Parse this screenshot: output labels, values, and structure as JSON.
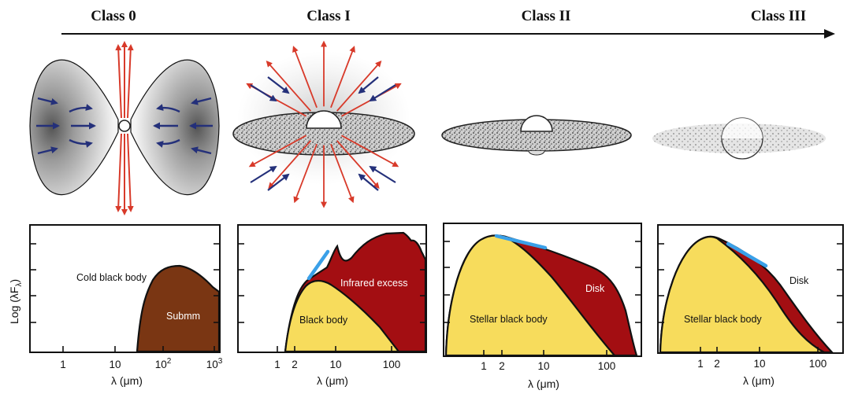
{
  "classes": [
    "Class 0",
    "Class I",
    "Class II",
    "Class III"
  ],
  "y_axis_label": "Log (λF",
  "y_axis_sub": "λ",
  "y_axis_close": ")",
  "panel0": {
    "xticks": [
      "1",
      "10",
      "10",
      "10"
    ],
    "xtick_sups": [
      "",
      "",
      "2",
      "3"
    ],
    "xlabel": "λ (μm)",
    "labels": {
      "cold": "Cold black body",
      "submm": "Submm"
    }
  },
  "panel1": {
    "xticks": [
      "1",
      "2",
      "10",
      "100"
    ],
    "xlabel": "λ (μm)",
    "labels": {
      "excess": "Infrared excess",
      "body": "Black body"
    }
  },
  "panel2": {
    "xticks": [
      "1",
      "2",
      "10",
      "100"
    ],
    "xlabel": "λ (μm)",
    "labels": {
      "disk": "Disk",
      "body": "Stellar black body"
    }
  },
  "panel3": {
    "xticks": [
      "1",
      "2",
      "10",
      "100"
    ],
    "xlabel": "λ (μm)",
    "labels": {
      "disk": "Disk",
      "body": "Stellar black body"
    }
  },
  "colors": {
    "submm": "#7a3613",
    "excess": "#a30e12",
    "body": "#f7dc5c",
    "fit": "#3aa0e8",
    "jet": "#d83a2a",
    "infall": "#24307a"
  }
}
